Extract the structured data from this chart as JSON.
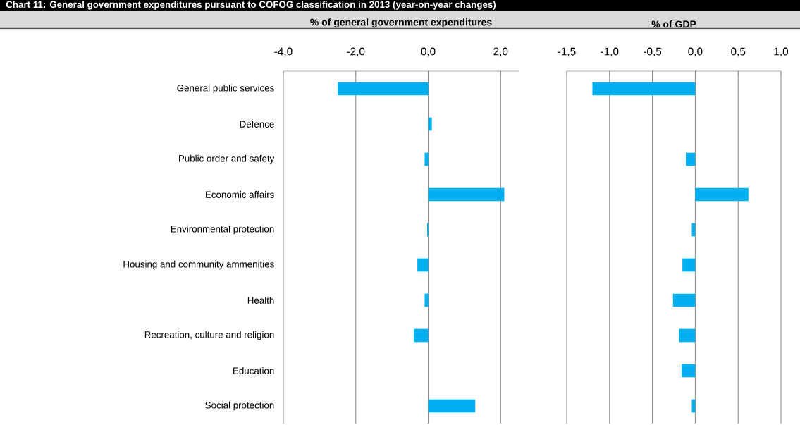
{
  "chart_data": [
    {
      "type": "bar",
      "orientation": "horizontal",
      "title": "Chart 11: General government expenditures pursuant to COFOG classification in 2013 (year-on-year changes)",
      "subtitle": "% of general government expenditures",
      "categories": [
        "General public services",
        "Defence",
        "Public order and safety",
        "Economic affairs",
        "Environmental protection",
        "Housing and community ammenities",
        "Health",
        "Recreation, culture and religion",
        "Education",
        "Social protection"
      ],
      "values": [
        -2.5,
        0.1,
        -0.1,
        2.1,
        -0.03,
        -0.3,
        -0.1,
        -0.4,
        0.0,
        1.3
      ],
      "color": "#00b0f0",
      "xlim": [
        -4,
        2.5
      ],
      "xticks": [
        {
          "value": -4,
          "label": "-4,0"
        },
        {
          "value": -2,
          "label": "-2,0"
        },
        {
          "value": 0,
          "label": "0,0"
        },
        {
          "value": 2,
          "label": "2,0"
        }
      ],
      "grid": "x"
    },
    {
      "type": "bar",
      "orientation": "horizontal",
      "subtitle": "% of GDP",
      "values": [
        -1.2,
        0.0,
        -0.11,
        0.62,
        -0.04,
        -0.15,
        -0.26,
        -0.19,
        -0.16,
        -0.04
      ],
      "color": "#00b0f0",
      "xlim": [
        -1.5,
        1.0
      ],
      "xticks": [
        {
          "value": -1.5,
          "label": "-1,5"
        },
        {
          "value": -1,
          "label": "-1,0"
        },
        {
          "value": -0.5,
          "label": "-0,5"
        },
        {
          "value": 0,
          "label": "0,0"
        },
        {
          "value": 0.5,
          "label": "0,5"
        },
        {
          "value": 1,
          "label": "1,0"
        }
      ],
      "grid": "x",
      "tick_labels": "x"
    }
  ]
}
